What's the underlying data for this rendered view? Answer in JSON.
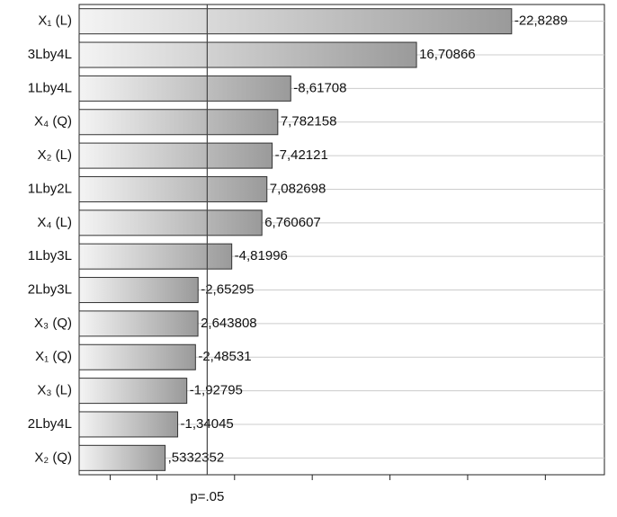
{
  "chart_data": {
    "type": "pareto",
    "categories": [
      "X₁  (L)",
      "3Lby4L",
      "1Lby4L",
      "X₄  (Q)",
      "X₂  (L)",
      "1Lby2L",
      "X₄  (L)",
      "1Lby3L",
      "2Lby3L",
      "X₃  (Q)",
      "X₁  (Q)",
      "X₃  (L)",
      "2Lby4L",
      "X₂  (Q)"
    ],
    "values": [
      -22.8289,
      16.70866,
      -8.61708,
      7.782158,
      -7.42121,
      7.082698,
      6.760607,
      -4.81996,
      -2.65295,
      2.643808,
      -2.48531,
      -1.92795,
      -1.34045,
      0.5332352
    ],
    "value_labels": [
      "-22,8289",
      "16,70866",
      "-8,61708",
      "7,782158",
      "-7,42121",
      "7,082698",
      "6,760607",
      "-4,81996",
      "-2,65295",
      "2,643808",
      "-2,48531",
      "-1,92795",
      "-1,34045",
      ",5332352"
    ],
    "colors": [
      "#f4f4f4",
      "#9a9a9a"
    ],
    "xlim": [
      -5,
      28.8
    ],
    "xtick_marks": [
      -3,
      0,
      5,
      10,
      15,
      20,
      25
    ],
    "reference": {
      "value": 3.24,
      "label": "p=.05"
    },
    "grid": true
  }
}
